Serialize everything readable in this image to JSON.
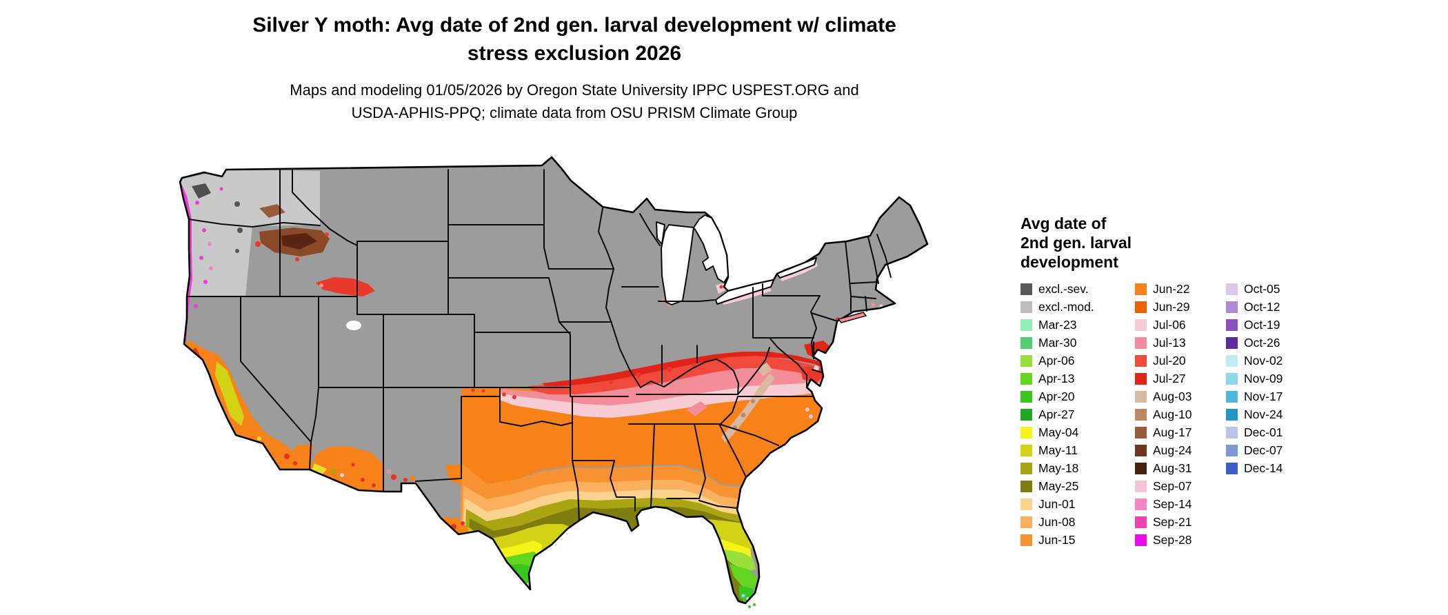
{
  "header": {
    "title_line1": "Silver Y moth: Avg date of 2nd gen. larval development w/ climate",
    "title_line2": "stress exclusion 2026",
    "subtitle_line1": "Maps and modeling 01/05/2026 by Oregon State University IPPC USPEST.ORG and",
    "subtitle_line2": "USDA-APHIS-PPQ; climate data from OSU PRISM Climate Group"
  },
  "legend": {
    "title_lines": [
      "Avg date of",
      "2nd gen. larval",
      "development"
    ],
    "columns": [
      {
        "entries": [
          {
            "label": "excl.-sev.",
            "color": "#595959"
          },
          {
            "label": "excl.-mod.",
            "color": "#bdbdbd"
          },
          {
            "label": "Mar-23",
            "color": "#90edb3"
          },
          {
            "label": "Mar-30",
            "color": "#55cd72"
          },
          {
            "label": "Apr-06",
            "color": "#9adf3e"
          },
          {
            "label": "Apr-13",
            "color": "#62d621"
          },
          {
            "label": "Apr-20",
            "color": "#38c51e"
          },
          {
            "label": "Apr-27",
            "color": "#1fa825"
          },
          {
            "label": "May-04",
            "color": "#f5f318"
          },
          {
            "label": "May-11",
            "color": "#d3d315"
          },
          {
            "label": "May-18",
            "color": "#a9a513"
          },
          {
            "label": "May-25",
            "color": "#7f7c10"
          },
          {
            "label": "Jun-01",
            "color": "#fbd38e"
          },
          {
            "label": "Jun-08",
            "color": "#fab05f"
          },
          {
            "label": "Jun-15",
            "color": "#f89334"
          }
        ]
      },
      {
        "entries": [
          {
            "label": "Jun-22",
            "color": "#f8821a"
          },
          {
            "label": "Jun-29",
            "color": "#ee6100"
          },
          {
            "label": "Jul-06",
            "color": "#f7ccd5"
          },
          {
            "label": "Jul-13",
            "color": "#f28d99"
          },
          {
            "label": "Jul-20",
            "color": "#f04a3c"
          },
          {
            "label": "Jul-27",
            "color": "#e02418"
          },
          {
            "label": "Aug-03",
            "color": "#d9b9a2"
          },
          {
            "label": "Aug-10",
            "color": "#bd8960"
          },
          {
            "label": "Aug-17",
            "color": "#9a5b38"
          },
          {
            "label": "Aug-24",
            "color": "#6f341d"
          },
          {
            "label": "Aug-31",
            "color": "#47200e"
          },
          {
            "label": "Sep-07",
            "color": "#f6c3dc"
          },
          {
            "label": "Sep-14",
            "color": "#f783c8"
          },
          {
            "label": "Sep-21",
            "color": "#f43fb7"
          },
          {
            "label": "Sep-28",
            "color": "#ee0cea"
          }
        ]
      },
      {
        "entries": [
          {
            "label": "Oct-05",
            "color": "#dcc8ef"
          },
          {
            "label": "Oct-12",
            "color": "#b189d6"
          },
          {
            "label": "Oct-19",
            "color": "#8b4fc0"
          },
          {
            "label": "Oct-26",
            "color": "#5f2a9e"
          },
          {
            "label": "Nov-02",
            "color": "#c2ecf4"
          },
          {
            "label": "Nov-09",
            "color": "#8fd8ee"
          },
          {
            "label": "Nov-17",
            "color": "#4fb6e0"
          },
          {
            "label": "Nov-24",
            "color": "#2196c8"
          },
          {
            "label": "Dec-01",
            "color": "#b9c6e8"
          },
          {
            "label": "Dec-07",
            "color": "#7e97d8"
          },
          {
            "label": "Dec-14",
            "color": "#3f5fc8"
          }
        ]
      }
    ]
  }
}
